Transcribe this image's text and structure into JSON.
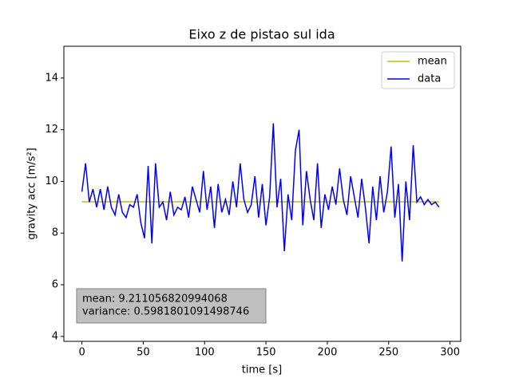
{
  "chart_data": {
    "type": "line",
    "title": "Eixo z de pistao sul ida",
    "xlabel": "time [s]",
    "ylabel": "gravity acc [m/s²]",
    "xlim": [
      -14.7,
      308.7
    ],
    "ylim": [
      3.81,
      15.23
    ],
    "xticks": [
      0,
      50,
      100,
      150,
      200,
      250,
      300
    ],
    "yticks": [
      4,
      6,
      8,
      10,
      12,
      14
    ],
    "legend": "upper right",
    "annotation": [
      "mean: 9.211056820994068",
      "variance: 0.5981801091498746"
    ],
    "series": [
      {
        "name": "mean",
        "color": "#bfbf00",
        "x": [
          0,
          291
        ],
        "values": [
          9.211056820994068,
          9.211056820994068
        ]
      },
      {
        "name": "data",
        "color": "#0000ff",
        "x": [
          0,
          3,
          6,
          9,
          12,
          15,
          18,
          21,
          24,
          27,
          30,
          33,
          36,
          39,
          42,
          45,
          48,
          51,
          54,
          57,
          60,
          63,
          66,
          69,
          72,
          75,
          78,
          81,
          84,
          87,
          90,
          93,
          96,
          99,
          102,
          105,
          108,
          111,
          114,
          117,
          120,
          123,
          126,
          129,
          132,
          135,
          138,
          141,
          144,
          147,
          150,
          153,
          156,
          159,
          162,
          165,
          168,
          171,
          174,
          177,
          180,
          183,
          186,
          189,
          192,
          195,
          198,
          201,
          204,
          207,
          210,
          213,
          216,
          219,
          222,
          225,
          228,
          231,
          234,
          237,
          240,
          243,
          246,
          249,
          252,
          255,
          258,
          261,
          264,
          267,
          270,
          273,
          276,
          279,
          282,
          285,
          288,
          291
        ],
        "values": [
          9.6,
          10.7,
          9.2,
          9.7,
          9.0,
          9.7,
          8.9,
          9.8,
          9.0,
          8.7,
          9.5,
          8.8,
          8.6,
          9.1,
          9.0,
          9.5,
          8.4,
          7.8,
          10.6,
          7.6,
          10.7,
          9.0,
          9.2,
          8.5,
          9.6,
          8.7,
          9.0,
          8.9,
          9.4,
          8.6,
          9.8,
          9.3,
          8.8,
          10.4,
          8.9,
          9.8,
          8.2,
          9.9,
          8.8,
          9.3,
          8.7,
          10.0,
          9.0,
          10.7,
          9.3,
          8.8,
          9.1,
          10.2,
          8.6,
          9.9,
          8.3,
          9.4,
          12.25,
          9.0,
          10.1,
          7.3,
          9.5,
          8.5,
          11.2,
          12.0,
          8.3,
          10.4,
          9.3,
          8.5,
          10.7,
          8.2,
          9.5,
          8.9,
          9.8,
          9.1,
          10.5,
          9.3,
          8.7,
          10.2,
          9.4,
          8.6,
          10.1,
          9.0,
          7.6,
          9.8,
          8.5,
          10.2,
          8.8,
          9.6,
          11.35,
          8.6,
          9.9,
          6.9,
          10.0,
          8.5,
          11.4,
          9.2,
          9.4,
          9.1,
          9.3,
          9.1,
          9.2,
          9.0
        ]
      }
    ]
  }
}
